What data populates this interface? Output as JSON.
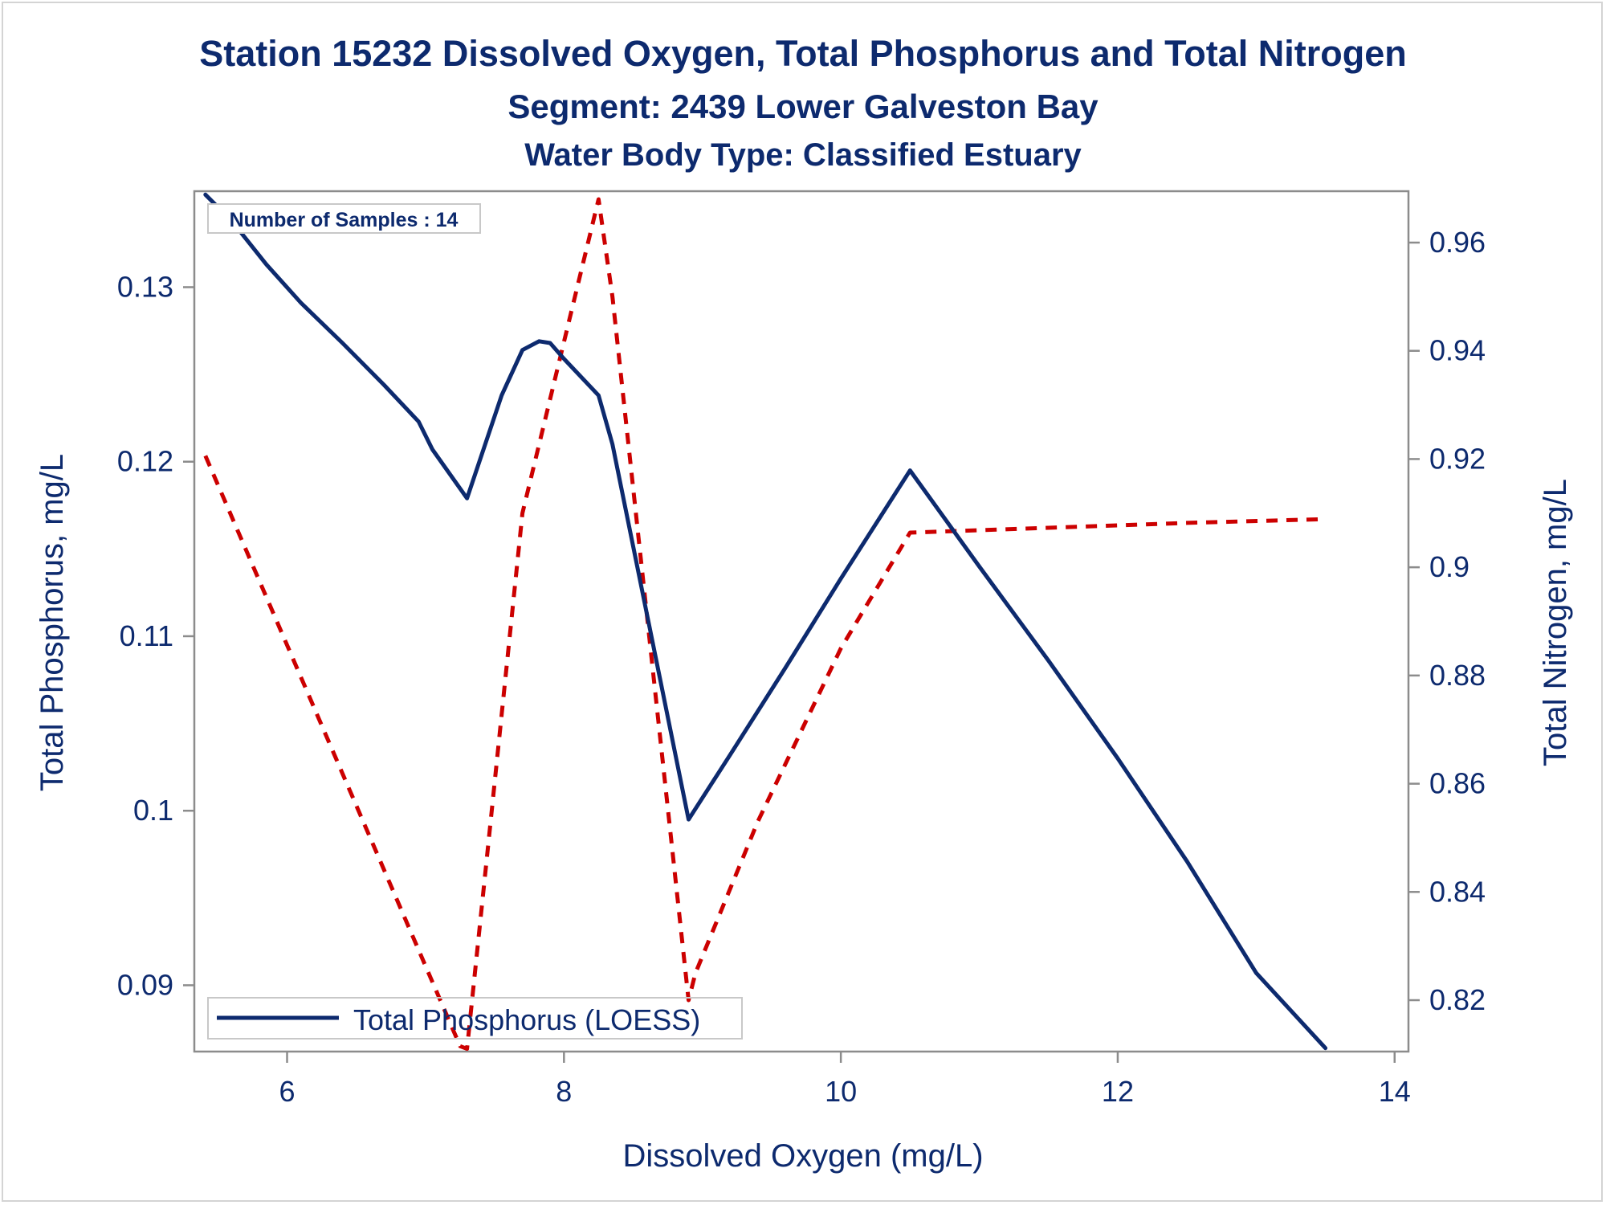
{
  "chart_data": {
    "type": "line",
    "title": "Station 15232  Dissolved Oxygen, Total Phosphorus and Total Nitrogen",
    "subtitle": "Segment: 2439  Lower Galveston Bay",
    "subtitle2": "Water Body Type: Classified Estuary",
    "xlabel": "Dissolved Oxygen (mg/L)",
    "ylabel": "Total Phosphorus, mg/L",
    "y2label": "Total Nitrogen, mg/L",
    "xlim": [
      5.33,
      14.1
    ],
    "ylim": [
      0.0862,
      0.1355
    ],
    "y2lim": [
      0.8105,
      0.9695
    ],
    "x_ticks": [
      "6",
      "8",
      "10",
      "12",
      "14"
    ],
    "y_ticks": [
      "0.09",
      "0.1",
      "0.11",
      "0.12",
      "0.13"
    ],
    "y2_ticks": [
      "0.82",
      "0.84",
      "0.86",
      "0.88",
      "0.9",
      "0.92",
      "0.94",
      "0.96"
    ],
    "annotation": "Number of Samples : 14",
    "legend": {
      "position": "bottom-left",
      "label": "Total Phosphorus (LOESS)"
    },
    "colors": {
      "text": "#0d2a6e",
      "phosphorus_line": "#0d2a6e",
      "nitrogen_line": "#cc0000",
      "axis": "#8c8c8c"
    },
    "series": [
      {
        "name": "Total Phosphorus (LOESS)",
        "axis": "left",
        "style": "solid",
        "x": [
          5.41,
          5.6,
          5.85,
          6.1,
          6.4,
          6.7,
          6.95,
          7.05,
          7.3,
          7.55,
          7.7,
          7.82,
          7.9,
          8.0,
          8.25,
          8.35,
          8.9,
          9.2,
          9.6,
          10.0,
          10.5,
          11.0,
          11.5,
          12.0,
          12.5,
          13.0,
          13.5
        ],
        "y": [
          0.1353,
          0.1338,
          0.1313,
          0.1291,
          0.1268,
          0.1244,
          0.1223,
          0.1207,
          0.1179,
          0.1238,
          0.1264,
          0.1269,
          0.1268,
          0.1259,
          0.1238,
          0.121,
          0.0995,
          0.1032,
          0.1082,
          0.1133,
          0.1195,
          0.114,
          0.1086,
          0.103,
          0.0971,
          0.0907,
          0.0864
        ]
      },
      {
        "name": "Total Nitrogen",
        "axis": "right",
        "style": "dashed",
        "x": [
          5.41,
          7.25,
          7.3,
          7.45,
          7.7,
          8.25,
          8.35,
          8.9,
          8.95,
          9.4,
          10.0,
          10.5,
          11.5,
          12.5,
          13.5
        ],
        "y": [
          0.9206,
          0.8115,
          0.811,
          0.848,
          0.91,
          0.968,
          0.95,
          0.82,
          0.825,
          0.853,
          0.885,
          0.9064,
          0.9073,
          0.9082,
          0.9089
        ]
      }
    ]
  }
}
